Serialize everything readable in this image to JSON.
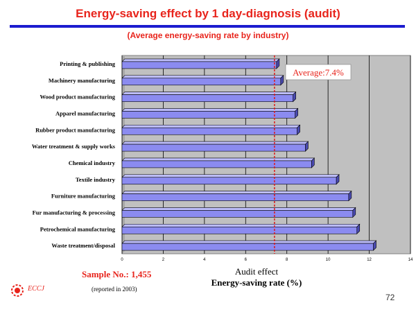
{
  "slide": {
    "title": "Energy-saving effect by 1 day-diagnosis (audit)",
    "subtitle": "(Average energy-saving rate by industry)",
    "xlabel_line1": "Audit effect",
    "xlabel_line2": "Energy-saving rate (%)",
    "sample": "Sample No.: 1,455",
    "reported": "(reported in 2003)",
    "logo_text": "ECCJ",
    "page_number": "72"
  },
  "colors": {
    "title": "#e8241c",
    "rule": "#1c1ccf",
    "bar": "#8b8bf0",
    "bar_top": "#bcbcfa",
    "plot_bg": "#c0c0c0",
    "average_line": "#e01818"
  },
  "chart_data": {
    "type": "bar",
    "orientation": "horizontal",
    "categories": [
      "Printing & publishing",
      "Machinery manufacturing",
      "Wood product manufacturing",
      "Apparel manufacturing",
      "Rubber product manufacturing",
      "Water treatment & supply works",
      "Chemical industry",
      "Textile industry",
      "Furniture manufacturing",
      "Fur manufacturing & processing",
      "Petrochemical manufacturing",
      "Waste treatment/disposal"
    ],
    "values": [
      7.5,
      7.7,
      8.3,
      8.4,
      8.5,
      8.9,
      9.2,
      10.4,
      11.0,
      11.2,
      11.4,
      12.2
    ],
    "xlim": [
      0,
      14
    ],
    "xticks": [
      "0",
      "2",
      "4",
      "6",
      "8",
      "10",
      "12",
      "14"
    ],
    "grid": true,
    "average": {
      "value": 7.4,
      "label": "Average:7.4%"
    },
    "xlabel": "Audit effect Energy-saving rate (%)"
  }
}
